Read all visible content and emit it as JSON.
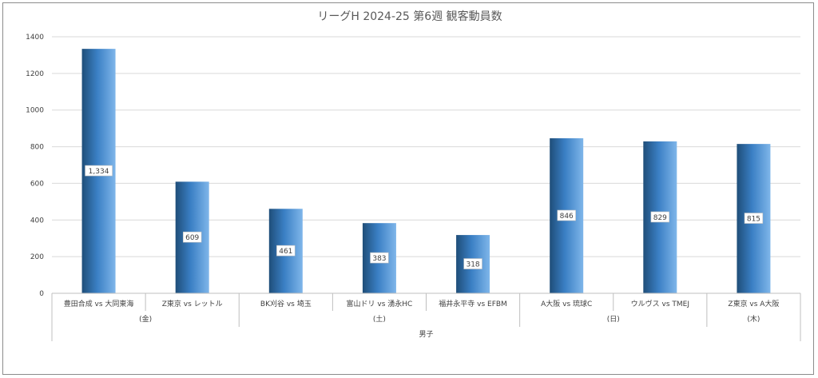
{
  "chart_data": {
    "type": "bar",
    "title": "リーグH 2024-25 第6週 観客動員数",
    "categories": [
      "豊田合成 vs 大同東海",
      "Z東京 vs レットル",
      "BK刈谷 vs 埼玉",
      "富山ドリ vs 湧永HC",
      "福井永平寺 vs EFBM",
      "A大阪 vs 琉球C",
      "ウルヴス vs TMEJ",
      "Z東京 vs A大阪"
    ],
    "values": [
      1334,
      609,
      461,
      383,
      318,
      846,
      829,
      815
    ],
    "value_labels": [
      "1,334",
      "609",
      "461",
      "383",
      "318",
      "846",
      "829",
      "815"
    ],
    "day_groups": [
      {
        "label": "(金)",
        "count": 2
      },
      {
        "label": "(土)",
        "count": 3
      },
      {
        "label": "(日)",
        "count": 2
      },
      {
        "label": "(木)",
        "count": 1
      }
    ],
    "outer_group": {
      "label": "男子",
      "count": 8
    },
    "y_ticks": [
      0,
      200,
      400,
      600,
      800,
      1000,
      1200,
      1400
    ],
    "ylim": [
      0,
      1400
    ],
    "grid": true,
    "legend": "none",
    "colors": {
      "bar_dark": "#1f4e79",
      "bar_mid": "#3a7fc4",
      "bar_light": "#7fb6ea",
      "grid": "#d9d9d9",
      "axis": "#bfbfbf",
      "text": "#404040"
    }
  }
}
